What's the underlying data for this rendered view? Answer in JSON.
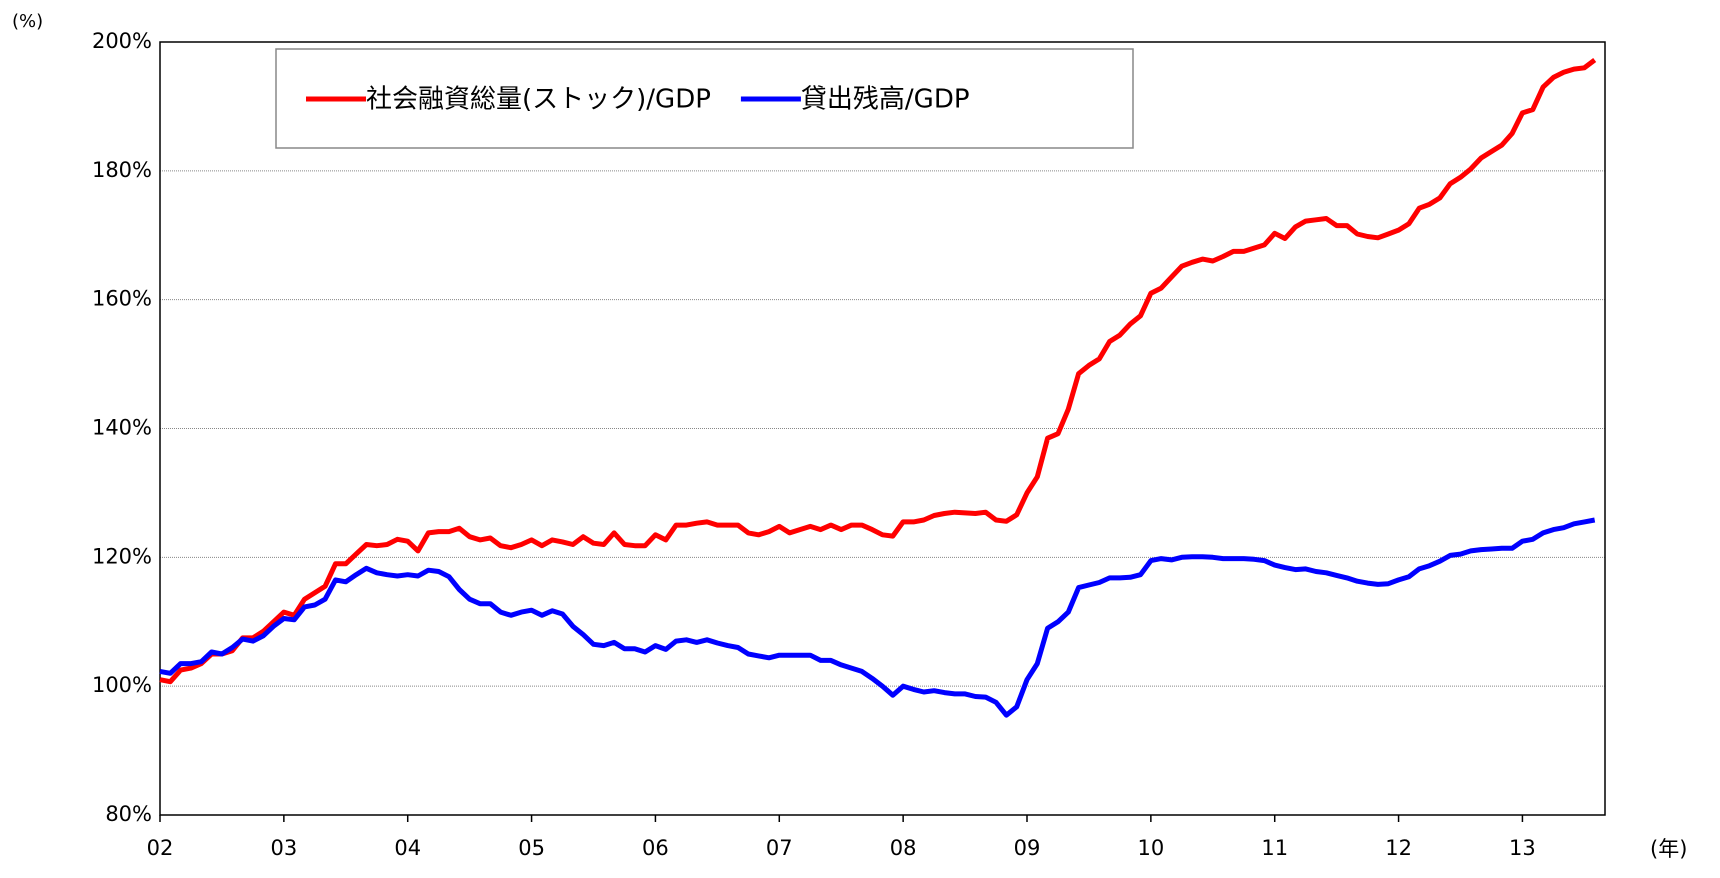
{
  "chart_data": {
    "type": "line",
    "y_unit_label": "(%)",
    "x_unit_label": "(年)",
    "xlim": [
      0,
      140
    ],
    "xticks": [
      {
        "value": 0,
        "label": "02"
      },
      {
        "value": 12,
        "label": "03"
      },
      {
        "value": 24,
        "label": "04"
      },
      {
        "value": 36,
        "label": "05"
      },
      {
        "value": 48,
        "label": "06"
      },
      {
        "value": 60,
        "label": "07"
      },
      {
        "value": 72,
        "label": "08"
      },
      {
        "value": 84,
        "label": "09"
      },
      {
        "value": 96,
        "label": "10"
      },
      {
        "value": 108,
        "label": "11"
      },
      {
        "value": 120,
        "label": "12"
      },
      {
        "value": 132,
        "label": "13"
      }
    ],
    "ylim": [
      80,
      200
    ],
    "yticks": [
      {
        "value": 80,
        "label": "80%"
      },
      {
        "value": 100,
        "label": "100%"
      },
      {
        "value": 120,
        "label": "120%"
      },
      {
        "value": 140,
        "label": "140%"
      },
      {
        "value": 160,
        "label": "160%"
      },
      {
        "value": 180,
        "label": "180%"
      },
      {
        "value": 200,
        "label": "200%"
      }
    ],
    "grid": true,
    "legend": "top-left",
    "series": [
      {
        "name": "社会融資総量(ストック)/GDP",
        "color": "#ff0000",
        "values": [
          101,
          100.7,
          102.5,
          102.8,
          103.5,
          105,
          105,
          105.5,
          107.5,
          107.5,
          108.5,
          110,
          111.5,
          111,
          113.5,
          114.5,
          115.5,
          119,
          119,
          120.5,
          122,
          121.8,
          122,
          122.8,
          122.5,
          121,
          123.8,
          124,
          124,
          124.5,
          123.2,
          122.7,
          123,
          121.8,
          121.5,
          122,
          122.7,
          121.8,
          122.7,
          122.4,
          122,
          123.2,
          122.2,
          122,
          123.8,
          122,
          121.8,
          121.8,
          123.5,
          122.7,
          125,
          125,
          125.3,
          125.5,
          125,
          125,
          125,
          123.8,
          123.5,
          124,
          124.8,
          123.8,
          124.3,
          124.8,
          124.3,
          125,
          124.3,
          125,
          125,
          124.3,
          123.5,
          123.3,
          125.5,
          125.5,
          125.8,
          126.5,
          126.8,
          127,
          126.9,
          126.8,
          127,
          125.8,
          125.6,
          126.6,
          130,
          132.5,
          138.5,
          139.2,
          143,
          148.5,
          149.8,
          150.8,
          153.5,
          154.5,
          156.2,
          157.5,
          161,
          161.8,
          163.5,
          165.2,
          165.8,
          166.3,
          166,
          166.7,
          167.5,
          167.5,
          168,
          168.5,
          170.3,
          169.5,
          171.3,
          172.2,
          172.4,
          172.6,
          171.5,
          171.5,
          170.2,
          169.8,
          169.6,
          170.2,
          170.8,
          171.8,
          174.2,
          174.8,
          175.8,
          178,
          179,
          180.3,
          182,
          183,
          184,
          185.8,
          189,
          189.5,
          193,
          194.5,
          195.3,
          195.8,
          196,
          197.2
        ]
      },
      {
        "name": "貸出残高/GDP",
        "color": "#0000ff",
        "values": [
          102.3,
          102,
          103.5,
          103.5,
          103.8,
          105.3,
          105,
          106,
          107.3,
          107,
          107.8,
          109.3,
          110.5,
          110.3,
          112.3,
          112.6,
          113.5,
          116.5,
          116.2,
          117.3,
          118.3,
          117.6,
          117.3,
          117.1,
          117.3,
          117.1,
          118,
          117.8,
          117,
          115,
          113.5,
          112.8,
          112.8,
          111.5,
          111,
          111.5,
          111.8,
          111,
          111.7,
          111.2,
          109.3,
          108,
          106.5,
          106.3,
          106.8,
          105.8,
          105.8,
          105.3,
          106.3,
          105.7,
          107,
          107.2,
          106.8,
          107.2,
          106.7,
          106.3,
          106,
          105,
          104.7,
          104.4,
          104.8,
          104.8,
          104.8,
          104.8,
          104,
          104,
          103.3,
          102.8,
          102.3,
          101.2,
          100,
          98.6,
          100,
          99.5,
          99.1,
          99.3,
          99,
          98.8,
          98.8,
          98.4,
          98.3,
          97.5,
          95.5,
          96.8,
          101,
          103.5,
          109,
          110,
          111.5,
          115.3,
          115.7,
          116.1,
          116.8,
          116.8,
          116.9,
          117.3,
          119.5,
          119.8,
          119.6,
          120,
          120.1,
          120.1,
          120,
          119.8,
          119.8,
          119.8,
          119.7,
          119.5,
          118.8,
          118.4,
          118.1,
          118.2,
          117.8,
          117.6,
          117.2,
          116.8,
          116.3,
          116,
          115.8,
          115.9,
          116.5,
          117,
          118.2,
          118.7,
          119.4,
          120.3,
          120.5,
          121,
          121.2,
          121.3,
          121.4,
          121.4,
          122.5,
          122.8,
          123.8,
          124.3,
          124.6,
          125.2,
          125.5,
          125.8
        ]
      }
    ]
  }
}
